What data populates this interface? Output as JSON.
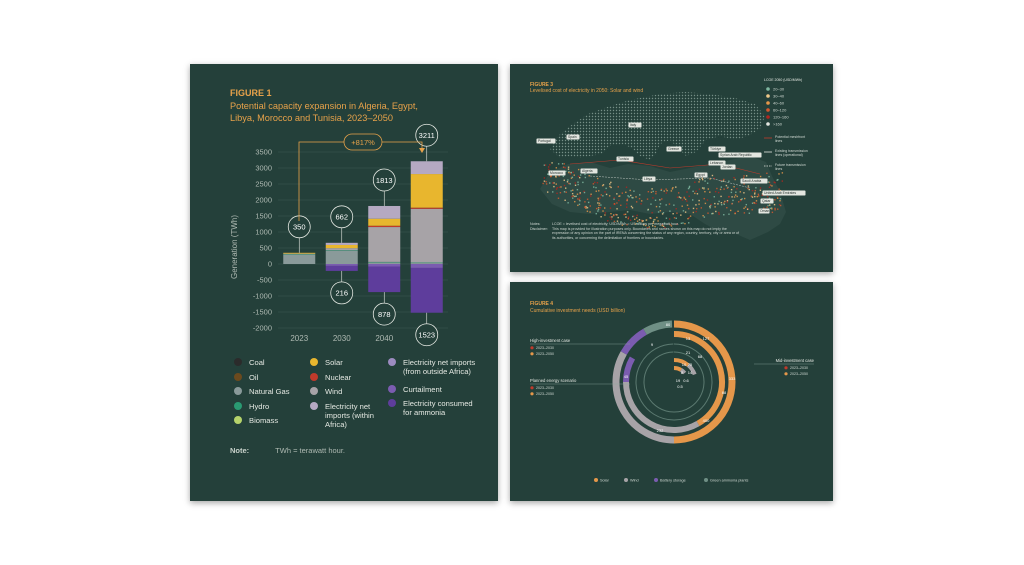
{
  "figure1": {
    "label": "FIGURE 1",
    "title_lines": [
      "Potential capacity expansion in Algeria, Egypt,",
      "Libya, Morocco and Tunisia, 2023–2050"
    ],
    "growth_label": "+817%",
    "note_label": "Note:",
    "note_text": "TWh = terawatt hour.",
    "legend": [
      {
        "name": "Coal",
        "color": "#2b2b2b"
      },
      {
        "name": "Oil",
        "color": "#6b4a1e"
      },
      {
        "name": "Natural Gas",
        "color": "#8a9a9a"
      },
      {
        "name": "Hydro",
        "color": "#2a9a72"
      },
      {
        "name": "Biomass",
        "color": "#b6d36b"
      },
      {
        "name": "Solar",
        "color": "#e8b62e"
      },
      {
        "name": "Nuclear",
        "color": "#c03a2b"
      },
      {
        "name": "Wind",
        "color": "#a7a3a7"
      },
      {
        "name": "Electricity net imports (within Africa)",
        "color": "#b5a9c2"
      },
      {
        "name": "Electricity net imports (from outside Africa)",
        "color": "#9c8bc0"
      },
      {
        "name": "Curtailment",
        "color": "#7b5cb0"
      },
      {
        "name": "Electricity consumed for ammonia",
        "color": "#5e3d9c"
      }
    ]
  },
  "chart_data": {
    "type": "bar",
    "stacked": true,
    "title": "Potential capacity expansion in Algeria, Egypt, Libya, Morocco and Tunisia, 2023–2050",
    "ylabel": "Generation (TWh)",
    "xlabel": "",
    "ylim": [
      -2000,
      3500
    ],
    "yticks": [
      3500,
      3000,
      2500,
      2000,
      1500,
      1000,
      500,
      0,
      -500,
      -1000,
      -1500,
      -2000
    ],
    "categories": [
      "2023",
      "2030",
      "2040",
      "2050"
    ],
    "totals_positive": [
      350,
      662,
      1813,
      3211
    ],
    "totals_negative": [
      null,
      216,
      878,
      1523
    ],
    "series": [
      {
        "name": "Natural Gas",
        "color": "#8a9a9a",
        "values": [
          300,
          420,
          50,
          30
        ]
      },
      {
        "name": "Hydro",
        "color": "#2a9a72",
        "values": [
          15,
          15,
          15,
          15
        ]
      },
      {
        "name": "Wind",
        "color": "#a7a3a7",
        "values": [
          10,
          60,
          1090,
          1680
        ]
      },
      {
        "name": "Nuclear",
        "color": "#c03a2b",
        "values": [
          0,
          0,
          40,
          35
        ]
      },
      {
        "name": "Solar",
        "color": "#e8b62e",
        "values": [
          25,
          100,
          220,
          1051
        ]
      },
      {
        "name": "Electricity net imports (within Africa)",
        "color": "#b5a9c2",
        "values": [
          0,
          67,
          398,
          400
        ]
      },
      {
        "name": "Curtailment",
        "color": "#7b5cb0",
        "values": [
          0,
          -60,
          -78,
          -123
        ]
      },
      {
        "name": "Electricity consumed for ammonia",
        "color": "#5e3d9c",
        "values": [
          0,
          -156,
          -800,
          -1400
        ]
      }
    ]
  },
  "figure3": {
    "label": "FIGURE 3",
    "title": "Levelised cost of electricity in 2050: Solar and wind",
    "legend_title": "LCOE 2050 (USD/MWh)",
    "lcoe_bins": [
      {
        "label": "20–30",
        "color": "#7fb7a0"
      },
      {
        "label": "30–40",
        "color": "#f0c98a"
      },
      {
        "label": "40–60",
        "color": "#e5974a"
      },
      {
        "label": "60–120",
        "color": "#d3582e"
      },
      {
        "label": "120–160",
        "color": "#b1261f"
      },
      {
        "label": ">160",
        "color": "#e3e6e0"
      }
    ],
    "lines": [
      "Potential meshfront lines",
      "Existing transmission lines (operational)",
      "Future transmission lines"
    ],
    "countries": [
      "Portugal",
      "Spain",
      "Italy",
      "Greece",
      "Türkiye",
      "Morocco",
      "Algeria",
      "Tunisia",
      "Libya",
      "Egypt",
      "Syrian Arab Republic",
      "Lebanon",
      "Jordan",
      "Saudi Arabia",
      "Oman",
      "Qatar",
      "United Arab Emirates"
    ],
    "notes_label": "Notes:",
    "notes_text": "LCOE = levelised cost of electricity; USD/MWh = US dollars per megawatt hour.",
    "disclaimer_label": "Disclaimer:",
    "disclaimer_text": "This map is provided for illustration purposes only. Boundaries and names shown on this map do not imply the expression of any opinion on the part of IRENA concerning the status of any region, country, territory, city or area or of its authorities, or concerning the delimitation of frontiers or boundaries."
  },
  "figure4": {
    "label": "FIGURE 4",
    "title": "Cumulative investment needs (USD billion)",
    "cases": [
      {
        "name": "High-investment case",
        "periods": [
          "2023–2030",
          "2023–2050"
        ]
      },
      {
        "name": "Planned energy scenario",
        "periods": [
          "2023–2030",
          "2023–2050"
        ]
      },
      {
        "name": "Mid-investment case",
        "periods": [
          "2023–2030",
          "2023–2050"
        ]
      }
    ],
    "period_colors": [
      "#c03a2b",
      "#e5974a"
    ],
    "ring_values": [
      "13",
      "127",
      "21",
      "68",
      "10",
      "75",
      "8",
      "14",
      "19",
      "0.6",
      "0.5",
      "333",
      "400",
      "232",
      "45",
      "9",
      "80",
      "68"
    ],
    "legend": [
      {
        "name": "Solar",
        "color": "#e5974a"
      },
      {
        "name": "Wind",
        "color": "#a7a3a7"
      },
      {
        "name": "Battery storage",
        "color": "#7b5cb0"
      },
      {
        "name": "Green ammonia plants",
        "color": "#6f8f85"
      }
    ]
  }
}
